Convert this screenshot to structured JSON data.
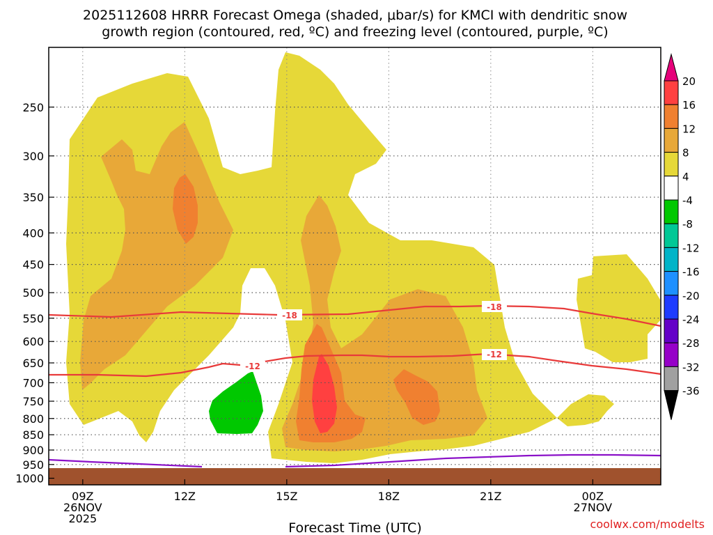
{
  "title_line1": "2025112608 HRRR Forecast Omega (shaded, μbar/s) for KMCI with dendritic snow",
  "title_line2": "growth region (contoured, red, ºC) and freezing level (contoured, purple, ºC)",
  "xlabel": "Forecast Time (UTC)",
  "credit": "coolwx.com/modelts",
  "chart_data": {
    "type": "time-height",
    "y_ticks": [
      "250",
      "300",
      "350",
      "400",
      "450",
      "500",
      "550",
      "600",
      "650",
      "700",
      "750",
      "800",
      "850",
      "900",
      "950",
      "1000"
    ],
    "y_values": [
      250,
      300,
      350,
      400,
      450,
      500,
      550,
      600,
      650,
      700,
      750,
      800,
      850,
      900,
      950,
      1000
    ],
    "x_ticks": [
      {
        "hour": 9,
        "line1": "09Z",
        "line2": "26NOV",
        "line3": "2025"
      },
      {
        "hour": 12,
        "line1": "12Z",
        "line2": "",
        "line3": ""
      },
      {
        "hour": 15,
        "line1": "15Z",
        "line2": "",
        "line3": ""
      },
      {
        "hour": 18,
        "line1": "18Z",
        "line2": "",
        "line3": ""
      },
      {
        "hour": 21,
        "line1": "21Z",
        "line2": "",
        "line3": ""
      },
      {
        "hour": 24,
        "line1": "00Z",
        "line2": "27NOV",
        "line3": ""
      }
    ],
    "x_range_hours": [
      8,
      26
    ],
    "y_range_hpa": [
      200,
      1025
    ],
    "colorbar": {
      "levels": [
        "20",
        "16",
        "12",
        "8",
        "4",
        "-4",
        "-8",
        "-12",
        "-16",
        "-20",
        "-24",
        "-28",
        "-32",
        "-36"
      ],
      "colors": [
        "#e6007a",
        "#ff4040",
        "#f08030",
        "#e8a838",
        "#e6d838",
        "#ffffff",
        "#00c800",
        "#00c896",
        "#00b4c8",
        "#1e90ff",
        "#1e3cff",
        "#6400c8",
        "#9600c8",
        "#a0a0a0",
        "#000000"
      ]
    },
    "shading_regions": [
      {
        "name": "omega 4-8 main mass",
        "level": "4 to 8",
        "color": "#e6d838"
      },
      {
        "name": "omega 8-12 band",
        "level": "8 to 12",
        "color": "#e8a838"
      },
      {
        "name": "omega 12-16 cores",
        "level": "12 to 16",
        "color": "#f08030"
      },
      {
        "name": "omega 16-20 core",
        "level": "16 to 20",
        "color": "#ff4040"
      },
      {
        "name": "omega -4 to -8",
        "level": "-4 to -8",
        "color": "#00c800"
      }
    ],
    "contours": [
      {
        "name": "dgz top",
        "value": -18,
        "label": "-18",
        "color": "#e83a3a"
      },
      {
        "name": "dgz bottom",
        "value": -12,
        "label": "-12",
        "color": "#e83a3a"
      },
      {
        "name": "freezing level",
        "value": 0,
        "color": "#8a10c8"
      }
    ]
  }
}
